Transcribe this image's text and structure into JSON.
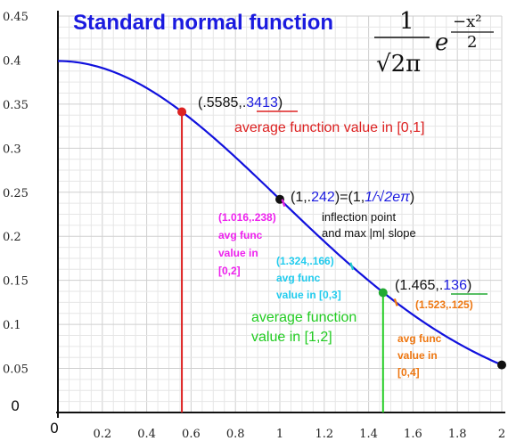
{
  "chart_data": {
    "type": "line",
    "title": "Standard normal function",
    "formula": {
      "numerator": "1",
      "denominator": "√2π",
      "exp_base": "e",
      "exp_numerator": "−x²",
      "exp_denominator": "2"
    },
    "xlim": [
      0,
      2
    ],
    "ylim": [
      0,
      0.45
    ],
    "x_ticks": [
      "0",
      "0.2",
      "0.4",
      "0.6",
      "0.8",
      "1",
      "1.2",
      "1.4",
      "1.6",
      "1.8",
      "2"
    ],
    "y_ticks": [
      "0",
      "0.05",
      "0.1",
      "0.15",
      "0.2",
      "0.25",
      "0.3",
      "0.35",
      "0.4",
      "0.45"
    ],
    "grid": true,
    "series": [
      {
        "function": "exp(-x^2/2)/sqrt(2*pi)",
        "color": "#1111dd"
      }
    ],
    "points": [
      {
        "x": 0.5585,
        "y": 0.3413,
        "color": "#dd2222"
      },
      {
        "x": 1,
        "y": 0.242,
        "color": "#111111"
      },
      {
        "x": 1.465,
        "y": 0.136,
        "color": "#22aa33"
      },
      {
        "x": 2,
        "y": 0.054,
        "color": "#111111"
      }
    ],
    "vlines": [
      {
        "x": 0.5585,
        "y": 0.3413,
        "color": "#dd2222"
      },
      {
        "x": 1.465,
        "y": 0.136,
        "color": "#22cc22"
      }
    ],
    "markers": [
      {
        "x": 1.016,
        "y": 0.238,
        "color": "#dd22dd"
      },
      {
        "x": 1.324,
        "y": 0.166,
        "color": "#22cccc"
      },
      {
        "x": 1.523,
        "y": 0.125,
        "color": "#ee7711"
      }
    ],
    "annotations": {
      "p1_pre": "(.5585,.",
      "p1_val": "3413",
      "p1_post": ")",
      "p1_desc": "average function value in [0,1]",
      "p2_pre": "(1,.",
      "p2_val": "242",
      "p2_mid": ")=(1,",
      "p2_expr": "1/√2eπ",
      "p2_post": ")",
      "p2_desc1": "inflection point",
      "p2_desc2": "and max |m| slope",
      "p3_pre": "(1.465,.",
      "p3_val": "136",
      "p3_post": ")",
      "avg12_l1": "average function",
      "avg12_l2": "value in [1,2]",
      "m02_coord": "(1.016,.238)",
      "m02_l1": "avg func",
      "m02_l2": "value in",
      "m02_l3": "[0,2]",
      "m03_coord": "(1.324,.166)",
      "m03_l1": "avg func",
      "m03_l2": "value in [0,3]",
      "m04_coord": "(1.523,.125)",
      "m04_l1": "avg func",
      "m04_l2": "value in",
      "m04_l3": "[0,4]"
    },
    "colors": {
      "curve": "#1111dd",
      "red": "#dd2222",
      "magenta": "#ee22ee",
      "cyan": "#22ccee",
      "green": "#22cc22",
      "orange": "#ee7711",
      "title": "#1a1adf"
    }
  }
}
